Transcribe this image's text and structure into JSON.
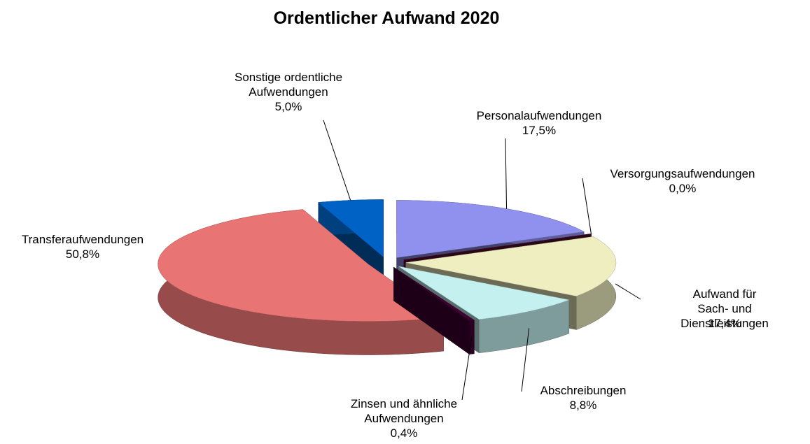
{
  "chart_data": {
    "type": "pie3d",
    "title": "Ordentlicher Aufwand 2020",
    "categories": [
      "Personalaufwendungen",
      "Versorgungsaufwendungen",
      "Aufwand für Sach- und\nDienstleistungen",
      "Abschreibungen",
      "Zinsen und ähnliche\nAufwendungen",
      "Transferaufwendungen",
      "Sonstige ordentliche\nAufwendungen"
    ],
    "values": [
      17.5,
      0.0,
      17.4,
      8.8,
      0.4,
      50.8,
      5.0
    ],
    "value_labels": [
      "17,5%",
      "0,0%",
      "17,4%",
      "8,8%",
      "0,4%",
      "50,8%",
      "5,0%"
    ],
    "colors": [
      "#9090ee",
      "#5a1030",
      "#eeeec0",
      "#c4f0f0",
      "#400034",
      "#e87474",
      "#0062c4"
    ]
  }
}
